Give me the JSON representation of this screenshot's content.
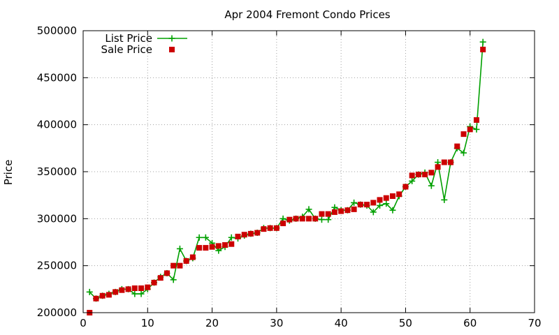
{
  "chart_data": {
    "type": "line",
    "title": "Apr 2004 Fremont Condo Prices",
    "xlabel": "",
    "ylabel": "Price",
    "xlim": [
      0,
      70
    ],
    "ylim": [
      200000,
      500000
    ],
    "xticks": [
      0,
      10,
      20,
      30,
      40,
      50,
      60,
      70
    ],
    "yticks": [
      200000,
      250000,
      300000,
      350000,
      400000,
      450000,
      500000
    ],
    "grid": true,
    "legend_position": "top-left",
    "series": [
      {
        "name": "List Price",
        "marker": "plus",
        "line": true,
        "color": "#00a000",
        "x": [
          1,
          2,
          3,
          4,
          5,
          6,
          7,
          8,
          9,
          10,
          11,
          12,
          13,
          14,
          15,
          16,
          17,
          18,
          19,
          20,
          21,
          22,
          23,
          24,
          25,
          26,
          27,
          28,
          29,
          30,
          31,
          32,
          33,
          34,
          35,
          36,
          37,
          38,
          39,
          40,
          41,
          42,
          43,
          44,
          45,
          46,
          47,
          48,
          49,
          50,
          51,
          52,
          53,
          54,
          55,
          56,
          57,
          58,
          59,
          60,
          61,
          62
        ],
        "y": [
          222000,
          215000,
          218000,
          220000,
          222000,
          225000,
          225000,
          220000,
          220000,
          225000,
          232000,
          238000,
          242000,
          235000,
          268000,
          255000,
          258000,
          280000,
          280000,
          274000,
          266000,
          270000,
          280000,
          279000,
          282000,
          284000,
          285000,
          290000,
          290000,
          290000,
          300000,
          298000,
          300000,
          302000,
          310000,
          300000,
          299000,
          299000,
          312000,
          309000,
          309000,
          317000,
          315000,
          314000,
          307000,
          314000,
          316000,
          309000,
          324000,
          334000,
          340000,
          347000,
          349000,
          335000,
          360000,
          320000,
          360000,
          375000,
          370000,
          398000,
          395000,
          488000
        ]
      },
      {
        "name": "Sale Price",
        "marker": "square",
        "line": false,
        "color": "#cc0000",
        "x": [
          1,
          2,
          3,
          4,
          5,
          6,
          7,
          8,
          9,
          10,
          11,
          12,
          13,
          14,
          15,
          16,
          17,
          18,
          19,
          20,
          21,
          22,
          23,
          24,
          25,
          26,
          27,
          28,
          29,
          30,
          31,
          32,
          33,
          34,
          35,
          36,
          37,
          38,
          39,
          40,
          41,
          42,
          43,
          44,
          45,
          46,
          47,
          48,
          49,
          50,
          51,
          52,
          53,
          54,
          55,
          56,
          57,
          58,
          59,
          60,
          61,
          62
        ],
        "y": [
          200000,
          215000,
          218000,
          219000,
          222000,
          224000,
          225000,
          226000,
          226000,
          227000,
          232000,
          237000,
          242000,
          250000,
          250000,
          255000,
          259000,
          269000,
          269000,
          270000,
          271000,
          272000,
          273000,
          281000,
          283000,
          284000,
          285000,
          289000,
          290000,
          290000,
          295000,
          299000,
          300000,
          300000,
          300000,
          300000,
          305000,
          305000,
          307000,
          308000,
          309000,
          310000,
          315000,
          315000,
          317000,
          320000,
          322000,
          324000,
          326000,
          334000,
          346000,
          347000,
          347000,
          349000,
          355000,
          360000,
          360000,
          377000,
          390000,
          395000,
          405000,
          480000
        ]
      }
    ]
  }
}
